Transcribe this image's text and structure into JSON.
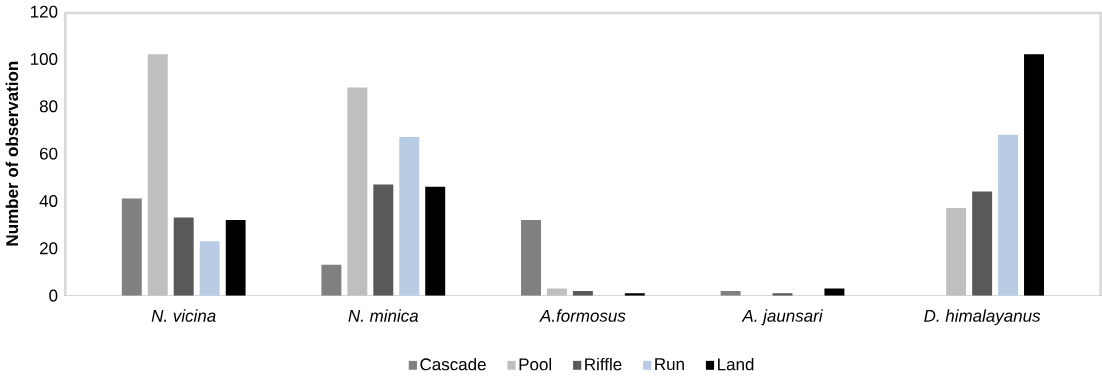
{
  "chart_data": {
    "type": "bar",
    "ylabel": "Number of observation",
    "categories": [
      "N. vicina",
      "N. minica",
      "A.formosus",
      "A. jaunsari",
      "D. himalayanus"
    ],
    "series": [
      {
        "name": "Cascade",
        "color": "#808080",
        "values": [
          41,
          13,
          32,
          2,
          0
        ]
      },
      {
        "name": "Pool",
        "color": "#bfbfbf",
        "values": [
          102,
          88,
          3,
          0,
          37
        ]
      },
      {
        "name": "Riffle",
        "color": "#595959",
        "values": [
          33,
          47,
          2,
          1,
          44
        ]
      },
      {
        "name": "Run",
        "color": "#b8cce4",
        "values": [
          23,
          67,
          0,
          0,
          68
        ]
      },
      {
        "name": "Land",
        "color": "#000000",
        "values": [
          32,
          46,
          1,
          3,
          102
        ]
      }
    ],
    "ylim": [
      0,
      120
    ],
    "yticks": [
      0,
      20,
      40,
      60,
      80,
      100,
      120
    ],
    "legend": "bottom",
    "grid": false
  }
}
